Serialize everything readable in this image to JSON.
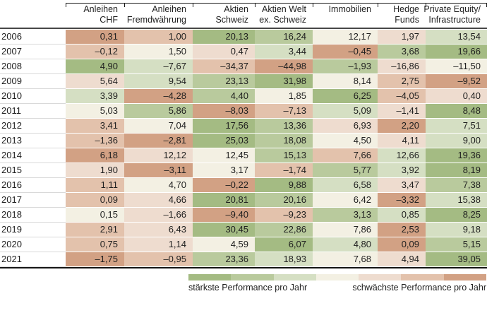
{
  "table": {
    "columns_display": [
      "Anleihen\nCHF",
      "Anleihen\nFremdwährung",
      "Aktien\nSchweiz",
      "Aktien Welt\nex. Schweiz",
      "Immobilien",
      "Hedge\nFunds",
      "Private Equity/\nInfrastructure"
    ]
  },
  "legend": {
    "strong_label": "stärkste Performance pro Jahr",
    "weak_label": "schwächste Performance pro Jahr",
    "palette_best_to_worst": [
      "#a4bb83",
      "#b9ca9d",
      "#d5dfc3",
      "#f3f0e3",
      "#eedccf",
      "#e3c2ac",
      "#d2a184"
    ]
  },
  "colors": {
    "top_rule": "#1a1a1a",
    "header_rule": "#474747",
    "bottom_rule": "#141414",
    "year_row_separator": "#d9d9d9",
    "text": "#1f1f1f"
  },
  "chart_data": {
    "type": "heatmap",
    "title": "",
    "rows": [
      "2006",
      "2007",
      "2008",
      "2009",
      "2010",
      "2011",
      "2012",
      "2013",
      "2014",
      "2015",
      "2016",
      "2017",
      "2018",
      "2019",
      "2020",
      "2021"
    ],
    "columns": [
      "Anleihen CHF",
      "Anleihen Fremdwährung",
      "Aktien Schweiz",
      "Aktien Welt ex. Schweiz",
      "Immobilien",
      "Hedge Funds",
      "Private Equity/Infrastructure"
    ],
    "values": [
      [
        0.31,
        1.0,
        20.13,
        16.24,
        12.17,
        1.97,
        13.54
      ],
      [
        -0.12,
        1.5,
        0.47,
        3.44,
        -0.45,
        3.68,
        19.66
      ],
      [
        4.9,
        -7.67,
        -34.37,
        -44.98,
        -1.93,
        -16.86,
        -11.5
      ],
      [
        5.64,
        9.54,
        23.13,
        31.98,
        8.14,
        2.75,
        -9.52
      ],
      [
        3.39,
        -4.28,
        4.4,
        1.85,
        6.25,
        -4.05,
        0.4
      ],
      [
        5.03,
        5.86,
        -8.03,
        -7.13,
        5.09,
        -1.41,
        8.48
      ],
      [
        3.41,
        7.04,
        17.56,
        13.36,
        6.93,
        2.2,
        7.51
      ],
      [
        -1.36,
        -2.81,
        25.03,
        18.08,
        4.5,
        4.11,
        9.0
      ],
      [
        6.18,
        12.12,
        12.45,
        15.13,
        7.66,
        12.66,
        19.36
      ],
      [
        1.9,
        -3.11,
        3.17,
        -1.74,
        5.77,
        3.92,
        8.19
      ],
      [
        1.11,
        4.7,
        -0.22,
        9.88,
        6.58,
        3.47,
        7.38
      ],
      [
        0.09,
        4.66,
        20.81,
        20.16,
        6.42,
        -3.32,
        15.38
      ],
      [
        0.15,
        -1.66,
        -9.4,
        -9.23,
        3.13,
        0.85,
        8.25
      ],
      [
        2.91,
        6.43,
        30.45,
        22.86,
        7.86,
        2.53,
        9.18
      ],
      [
        0.75,
        1.14,
        4.59,
        6.07,
        4.8,
        0.09,
        5.15
      ],
      [
        -1.75,
        -0.95,
        23.36,
        18.93,
        7.68,
        4.94,
        39.05
      ]
    ],
    "number_format": "comma decimal, 2 digits, en-dash minus",
    "color_rule": "each cell colored by rank of its value within the year row: best = strongest green, worst = strongest brown",
    "legend": {
      "left_label": "stärkste Performance pro Jahr",
      "right_label": "schwächste Performance pro Jahr",
      "position": "bottom-right, 7-step green-to-brown ramp"
    },
    "grid": false
  }
}
